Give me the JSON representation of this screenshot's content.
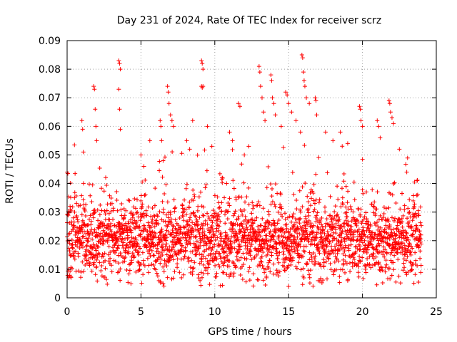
{
  "chart_data": {
    "type": "scatter",
    "title": "Day 231 of 2024, Rate Of TEC Index for receiver scrz",
    "xlabel": "GPS time / hours",
    "ylabel": "ROTI / TECUs",
    "xlim": [
      0,
      25
    ],
    "ylim": [
      0,
      0.09
    ],
    "x_ticks": [
      0,
      5,
      10,
      15,
      20,
      25
    ],
    "x_tick_labels": [
      "0",
      "5",
      "10",
      "15",
      "20",
      "25"
    ],
    "y_ticks": [
      0,
      0.01,
      0.02,
      0.03,
      0.04,
      0.05,
      0.06,
      0.07,
      0.08,
      0.09
    ],
    "y_tick_labels": [
      "0",
      "0.01",
      "0.02",
      "0.03",
      "0.04",
      "0.05",
      "0.06",
      "0.07",
      "0.08",
      "0.09"
    ],
    "grid": true,
    "marker": "+",
    "series": [
      {
        "color": "#ff0000",
        "band_hours": [
          0,
          24
        ],
        "band_median": 0.02,
        "band_typical_range": [
          0.01,
          0.035
        ],
        "points": [
          [
            0.0,
            0.044
          ],
          [
            0.05,
            0.0435
          ],
          [
            0.2,
            0.032
          ],
          [
            0.5,
            0.035
          ],
          [
            1.0,
            0.062
          ],
          [
            1.05,
            0.059
          ],
          [
            1.1,
            0.051
          ],
          [
            1.8,
            0.074
          ],
          [
            1.85,
            0.073
          ],
          [
            1.9,
            0.066
          ],
          [
            1.95,
            0.06
          ],
          [
            2.0,
            0.055
          ],
          [
            3.5,
            0.083
          ],
          [
            3.55,
            0.082
          ],
          [
            3.6,
            0.08
          ],
          [
            3.5,
            0.073
          ],
          [
            3.55,
            0.066
          ],
          [
            3.6,
            0.059
          ],
          [
            5.0,
            0.05
          ],
          [
            5.2,
            0.046
          ],
          [
            5.6,
            0.055
          ],
          [
            6.3,
            0.062
          ],
          [
            6.35,
            0.06
          ],
          [
            6.4,
            0.055
          ],
          [
            6.5,
            0.048
          ],
          [
            6.8,
            0.074
          ],
          [
            6.85,
            0.072
          ],
          [
            6.9,
            0.068
          ],
          [
            7.0,
            0.064
          ],
          [
            7.1,
            0.062
          ],
          [
            7.2,
            0.06
          ],
          [
            8.1,
            0.055
          ],
          [
            8.3,
            0.052
          ],
          [
            8.5,
            0.062
          ],
          [
            9.1,
            0.083
          ],
          [
            9.15,
            0.082
          ],
          [
            9.2,
            0.08
          ],
          [
            9.1,
            0.074
          ],
          [
            9.15,
            0.0735
          ],
          [
            9.2,
            0.074
          ],
          [
            9.5,
            0.06
          ],
          [
            9.8,
            0.053
          ],
          [
            10.5,
            0.042
          ],
          [
            10.8,
            0.04
          ],
          [
            11.0,
            0.058
          ],
          [
            11.2,
            0.055
          ],
          [
            11.6,
            0.068
          ],
          [
            11.7,
            0.067
          ],
          [
            12.0,
            0.05
          ],
          [
            12.3,
            0.053
          ],
          [
            13.0,
            0.081
          ],
          [
            13.05,
            0.079
          ],
          [
            13.1,
            0.074
          ],
          [
            13.2,
            0.07
          ],
          [
            13.3,
            0.065
          ],
          [
            13.4,
            0.062
          ],
          [
            13.8,
            0.078
          ],
          [
            13.85,
            0.076
          ],
          [
            13.9,
            0.07
          ],
          [
            14.0,
            0.068
          ],
          [
            14.1,
            0.064
          ],
          [
            14.5,
            0.06
          ],
          [
            14.8,
            0.072
          ],
          [
            14.9,
            0.071
          ],
          [
            15.0,
            0.068
          ],
          [
            15.2,
            0.065
          ],
          [
            15.5,
            0.062
          ],
          [
            15.8,
            0.058
          ],
          [
            15.9,
            0.085
          ],
          [
            15.95,
            0.084
          ],
          [
            16.0,
            0.079
          ],
          [
            16.05,
            0.076
          ],
          [
            16.1,
            0.074
          ],
          [
            16.2,
            0.07
          ],
          [
            16.4,
            0.068
          ],
          [
            16.8,
            0.07
          ],
          [
            16.85,
            0.069
          ],
          [
            16.9,
            0.064
          ],
          [
            17.5,
            0.058
          ],
          [
            18.0,
            0.055
          ],
          [
            18.5,
            0.058
          ],
          [
            19.0,
            0.054
          ],
          [
            19.8,
            0.067
          ],
          [
            19.85,
            0.066
          ],
          [
            19.9,
            0.062
          ],
          [
            20.0,
            0.06
          ],
          [
            21.0,
            0.062
          ],
          [
            21.1,
            0.06
          ],
          [
            21.2,
            0.056
          ],
          [
            21.8,
            0.069
          ],
          [
            21.85,
            0.068
          ],
          [
            21.9,
            0.065
          ],
          [
            22.0,
            0.063
          ],
          [
            22.1,
            0.061
          ],
          [
            22.5,
            0.052
          ],
          [
            23.0,
            0.044
          ],
          [
            23.7,
            0.041
          ],
          [
            0.1,
            0.007
          ],
          [
            6.5,
            0.005
          ],
          [
            9.0,
            0.006
          ],
          [
            13.5,
            0.007
          ],
          [
            15.0,
            0.004
          ],
          [
            17.0,
            0.006
          ],
          [
            19.0,
            0.006
          ],
          [
            23.8,
            0.0055
          ]
        ]
      }
    ]
  }
}
